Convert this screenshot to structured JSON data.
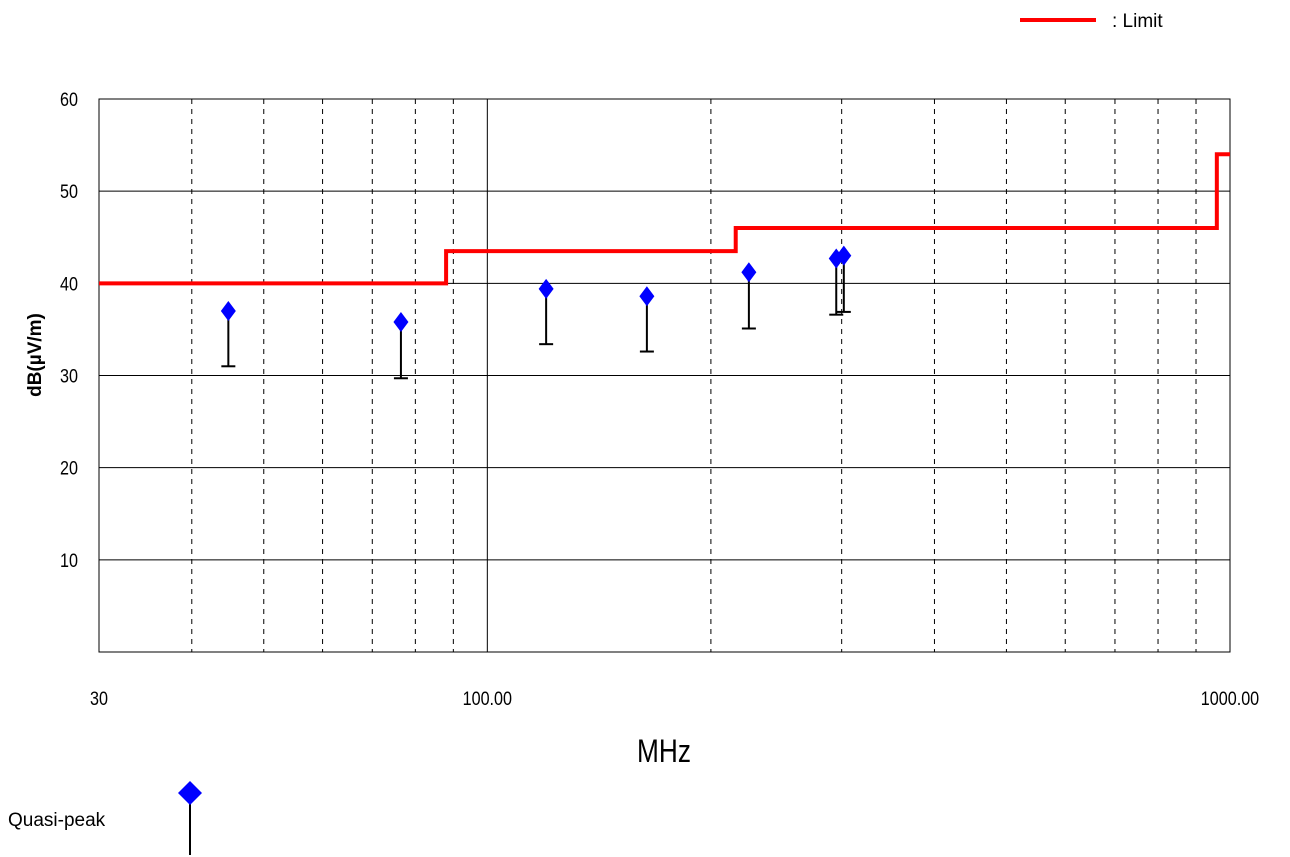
{
  "chart_data": {
    "type": "scatter",
    "title": "",
    "xlabel": "MHz",
    "ylabel": "dB(µV/m)",
    "x_scale": "log",
    "xlim": [
      30,
      1000
    ],
    "ylim": [
      0,
      60
    ],
    "x_tick_labels": [
      {
        "value": 30,
        "label": "30"
      },
      {
        "value": 100,
        "label": "100.00"
      },
      {
        "value": 1000,
        "label": "1000.00"
      }
    ],
    "y_ticks": [
      10,
      20,
      30,
      40,
      50,
      60
    ],
    "grid": true,
    "limit": {
      "name": "Limit",
      "legend_label": ": Limit",
      "color": "#ff0000",
      "steps": [
        {
          "from": 30,
          "to": 88,
          "value": 40.0
        },
        {
          "from": 88,
          "to": 216,
          "value": 43.5
        },
        {
          "from": 216,
          "to": 960,
          "value": 46.0
        },
        {
          "from": 960,
          "to": 1000,
          "value": 54.0
        }
      ]
    },
    "series": [
      {
        "name": "Quasi-peak",
        "color": "#0000ff",
        "points": [
          {
            "x": 44.8,
            "peak": 37.0,
            "qp": 31.0
          },
          {
            "x": 76.5,
            "peak": 35.8,
            "qp": 29.7
          },
          {
            "x": 120.0,
            "peak": 39.4,
            "qp": 33.4
          },
          {
            "x": 164.0,
            "peak": 38.6,
            "qp": 32.6
          },
          {
            "x": 225.0,
            "peak": 41.2,
            "qp": 35.1
          },
          {
            "x": 295.0,
            "peak": 42.7,
            "qp": 36.6
          },
          {
            "x": 302.0,
            "peak": 43.0,
            "qp": 36.9
          }
        ]
      }
    ]
  },
  "legend": {
    "quasi_peak_label": "Quasi-peak"
  }
}
